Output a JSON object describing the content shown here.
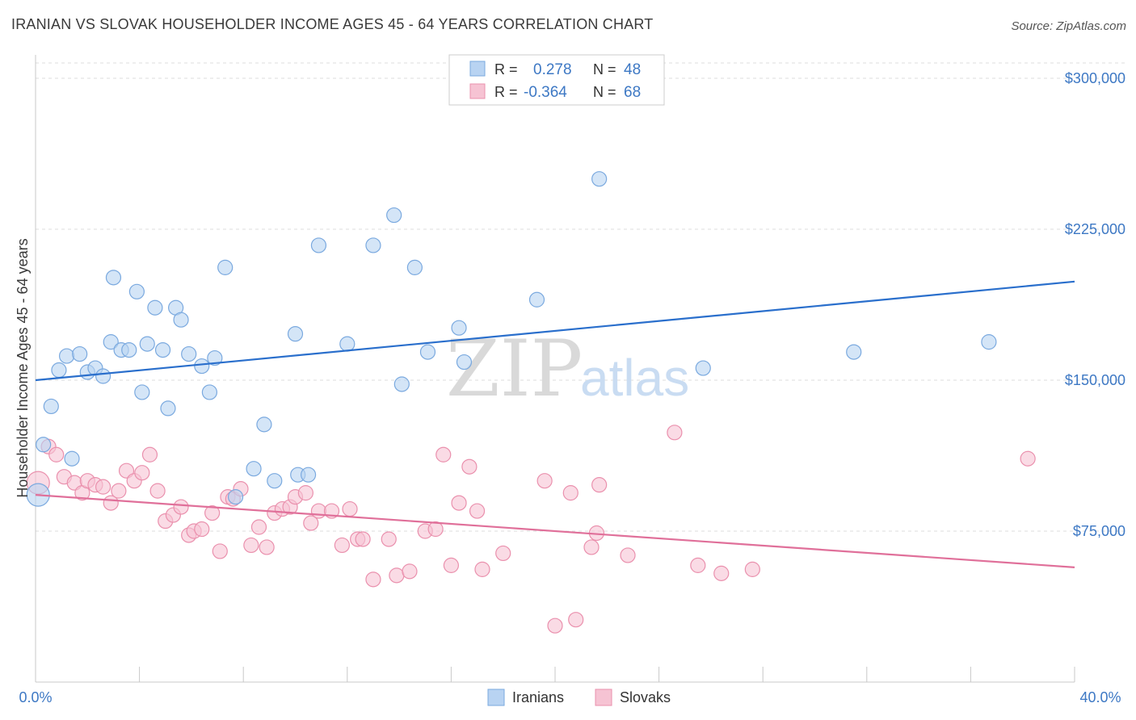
{
  "title": "IRANIAN VS SLOVAK HOUSEHOLDER INCOME AGES 45 - 64 YEARS CORRELATION CHART",
  "source": "Source: ZipAtlas.com",
  "watermark": {
    "zip": "ZIP",
    "atlas": "atlas"
  },
  "colors": {
    "iranians_fill": "#b8d3f2",
    "iranians_stroke": "#7aa9df",
    "iranians_line": "#2a6fcc",
    "slovaks_fill": "#f6c3d3",
    "slovaks_stroke": "#ea90ad",
    "slovaks_line": "#e0709a",
    "axis_text": "#3d78c4",
    "grid": "#dddddd"
  },
  "legend": {
    "rows": [
      {
        "r_label": "R =",
        "r_value": "0.278",
        "n_label": "N =",
        "n_value": "48"
      },
      {
        "r_label": "R =",
        "r_value": "-0.364",
        "n_label": "N =",
        "n_value": "68"
      }
    ],
    "bottom": [
      "Iranians",
      "Slovaks"
    ]
  },
  "chart_data": {
    "type": "scatter",
    "title": "IRANIAN VS SLOVAK HOUSEHOLDER INCOME AGES 45 - 64 YEARS CORRELATION CHART",
    "xlabel": "",
    "ylabel": "Householder Income Ages 45 - 64 years",
    "xlim": [
      0,
      40
    ],
    "ylim": [
      0,
      310000
    ],
    "x_tick_labels": [
      "0.0%",
      "40.0%"
    ],
    "y_ticks": [
      75000,
      150000,
      225000,
      300000
    ],
    "y_tick_labels": [
      "$75,000",
      "$150,000",
      "$225,000",
      "$300,000"
    ],
    "grid": "horizontal dashed",
    "legend_placement": "top-center",
    "series": [
      {
        "name": "Iranians",
        "r": 0.278,
        "n": 48,
        "trend": [
          [
            0,
            150000
          ],
          [
            40,
            199000
          ]
        ],
        "points": [
          [
            0.1,
            93000
          ],
          [
            0.3,
            118000
          ],
          [
            0.6,
            137000
          ],
          [
            0.9,
            155000
          ],
          [
            1.2,
            162000
          ],
          [
            1.4,
            111000
          ],
          [
            1.7,
            163000
          ],
          [
            2.0,
            154000
          ],
          [
            2.3,
            156000
          ],
          [
            2.6,
            152000
          ],
          [
            2.9,
            169000
          ],
          [
            3.0,
            201000
          ],
          [
            3.3,
            165000
          ],
          [
            3.6,
            165000
          ],
          [
            3.9,
            194000
          ],
          [
            4.1,
            144000
          ],
          [
            4.3,
            168000
          ],
          [
            4.6,
            186000
          ],
          [
            4.9,
            165000
          ],
          [
            5.1,
            136000
          ],
          [
            5.4,
            186000
          ],
          [
            5.6,
            180000
          ],
          [
            5.9,
            163000
          ],
          [
            6.4,
            157000
          ],
          [
            6.7,
            144000
          ],
          [
            6.9,
            161000
          ],
          [
            7.3,
            206000
          ],
          [
            7.7,
            92000
          ],
          [
            8.4,
            106000
          ],
          [
            8.8,
            128000
          ],
          [
            9.2,
            100000
          ],
          [
            10.0,
            173000
          ],
          [
            10.1,
            103000
          ],
          [
            10.5,
            103000
          ],
          [
            10.9,
            217000
          ],
          [
            12.0,
            168000
          ],
          [
            13.0,
            217000
          ],
          [
            13.8,
            232000
          ],
          [
            14.1,
            148000
          ],
          [
            14.6,
            206000
          ],
          [
            15.1,
            164000
          ],
          [
            16.3,
            176000
          ],
          [
            16.5,
            159000
          ],
          [
            19.3,
            190000
          ],
          [
            21.7,
            250000
          ],
          [
            25.7,
            156000
          ],
          [
            31.5,
            164000
          ],
          [
            36.7,
            169000
          ]
        ]
      },
      {
        "name": "Slovaks",
        "r": -0.364,
        "n": 68,
        "trend": [
          [
            0,
            93000
          ],
          [
            40,
            57000
          ]
        ],
        "points": [
          [
            0.1,
            99000
          ],
          [
            0.5,
            117000
          ],
          [
            0.8,
            113000
          ],
          [
            1.1,
            102000
          ],
          [
            1.5,
            99000
          ],
          [
            1.8,
            94000
          ],
          [
            2.0,
            100000
          ],
          [
            2.3,
            98000
          ],
          [
            2.6,
            97000
          ],
          [
            2.9,
            89000
          ],
          [
            3.2,
            95000
          ],
          [
            3.5,
            105000
          ],
          [
            3.8,
            100000
          ],
          [
            4.1,
            104000
          ],
          [
            4.4,
            113000
          ],
          [
            4.7,
            95000
          ],
          [
            5.0,
            80000
          ],
          [
            5.3,
            83000
          ],
          [
            5.6,
            87000
          ],
          [
            5.9,
            73000
          ],
          [
            6.1,
            75000
          ],
          [
            6.4,
            76000
          ],
          [
            6.8,
            84000
          ],
          [
            7.1,
            65000
          ],
          [
            7.4,
            92000
          ],
          [
            7.6,
            91000
          ],
          [
            7.9,
            96000
          ],
          [
            8.3,
            68000
          ],
          [
            8.6,
            77000
          ],
          [
            8.9,
            67000
          ],
          [
            9.2,
            84000
          ],
          [
            9.5,
            86000
          ],
          [
            9.8,
            87000
          ],
          [
            10.0,
            92000
          ],
          [
            10.4,
            94000
          ],
          [
            10.6,
            79000
          ],
          [
            10.9,
            85000
          ],
          [
            11.4,
            85000
          ],
          [
            11.8,
            68000
          ],
          [
            12.1,
            86000
          ],
          [
            12.4,
            71000
          ],
          [
            12.6,
            71000
          ],
          [
            13.0,
            51000
          ],
          [
            13.6,
            71000
          ],
          [
            13.9,
            53000
          ],
          [
            14.4,
            55000
          ],
          [
            15.0,
            75000
          ],
          [
            15.4,
            76000
          ],
          [
            15.7,
            113000
          ],
          [
            16.0,
            58000
          ],
          [
            16.3,
            89000
          ],
          [
            16.7,
            107000
          ],
          [
            17.0,
            85000
          ],
          [
            17.2,
            56000
          ],
          [
            18.0,
            64000
          ],
          [
            19.6,
            100000
          ],
          [
            20.0,
            28000
          ],
          [
            20.6,
            94000
          ],
          [
            20.8,
            31000
          ],
          [
            21.4,
            67000
          ],
          [
            21.6,
            74000
          ],
          [
            21.7,
            98000
          ],
          [
            22.8,
            63000
          ],
          [
            24.6,
            124000
          ],
          [
            25.5,
            58000
          ],
          [
            26.4,
            54000
          ],
          [
            27.6,
            56000
          ],
          [
            38.2,
            111000
          ]
        ]
      }
    ]
  }
}
